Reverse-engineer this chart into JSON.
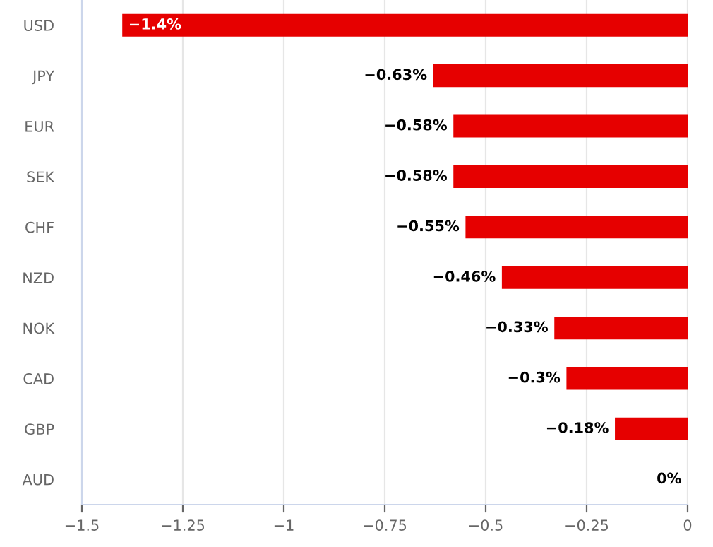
{
  "chart_data": {
    "type": "bar",
    "orientation": "horizontal",
    "categories": [
      "USD",
      "JPY",
      "EUR",
      "SEK",
      "CHF",
      "NZD",
      "NOK",
      "CAD",
      "GBP",
      "AUD"
    ],
    "values": [
      -1.4,
      -0.63,
      -0.58,
      -0.58,
      -0.55,
      -0.46,
      -0.33,
      -0.3,
      -0.18,
      0
    ],
    "value_labels": [
      "−1.4%",
      "−0.63%",
      "−0.58%",
      "−0.58%",
      "−0.55%",
      "−0.46%",
      "−0.33%",
      "−0.3%",
      "−0.18%",
      "0%"
    ],
    "color": "#e60000",
    "xlim": [
      -1.5,
      0
    ],
    "xticks": [
      {
        "value": -1.5,
        "label": "−1.5"
      },
      {
        "value": -1.25,
        "label": "−1.25"
      },
      {
        "value": -1,
        "label": "−1"
      },
      {
        "value": -0.75,
        "label": "−0.75"
      },
      {
        "value": -0.5,
        "label": "−0.5"
      },
      {
        "value": -0.25,
        "label": "−0.25"
      },
      0
    ],
    "grid": "x",
    "legend": false
  }
}
